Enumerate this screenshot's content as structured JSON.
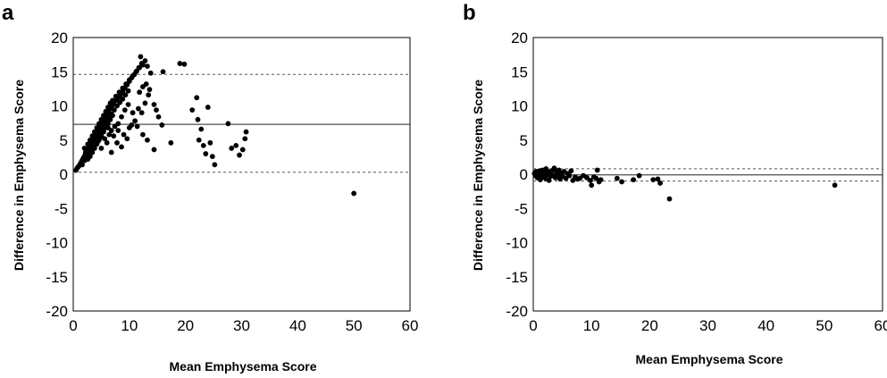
{
  "chart_data": [
    {
      "panel_label": "a",
      "type": "scatter",
      "xlabel": "Mean Emphysema Score",
      "ylabel": "Difference in Emphysema Score",
      "xlim": [
        0,
        60
      ],
      "ylim": [
        -20,
        20
      ],
      "x_ticks": [
        "0",
        "10",
        "20",
        "30",
        "40",
        "50",
        "60"
      ],
      "y_ticks": [
        "-20",
        "-15",
        "-10",
        "-5",
        "0",
        "5",
        "10",
        "15",
        "20"
      ],
      "grid": false,
      "reference_lines": [
        {
          "style": "solid",
          "y": 7.3
        },
        {
          "style": "dashed",
          "y": 14.6
        },
        {
          "style": "dashed",
          "y": 0.3
        }
      ],
      "points": [
        [
          0.5,
          0.6
        ],
        [
          0.7,
          0.9
        ],
        [
          0.9,
          1.1
        ],
        [
          1.1,
          1.3
        ],
        [
          1.3,
          1.6
        ],
        [
          1.5,
          1.9
        ],
        [
          1.7,
          2.2
        ],
        [
          1.9,
          2.5
        ],
        [
          2.1,
          2.8
        ],
        [
          2.3,
          3.1
        ],
        [
          2.5,
          3.4
        ],
        [
          2.7,
          3.7
        ],
        [
          2.9,
          4.0
        ],
        [
          3.1,
          4.3
        ],
        [
          3.3,
          4.7
        ],
        [
          3.5,
          5.0
        ],
        [
          3.7,
          5.3
        ],
        [
          3.9,
          5.6
        ],
        [
          4.1,
          5.9
        ],
        [
          4.3,
          6.2
        ],
        [
          4.5,
          6.5
        ],
        [
          4.7,
          6.8
        ],
        [
          4.9,
          7.1
        ],
        [
          5.1,
          7.4
        ],
        [
          5.3,
          7.7
        ],
        [
          5.5,
          8.0
        ],
        [
          5.7,
          8.3
        ],
        [
          5.9,
          8.6
        ],
        [
          6.1,
          8.9
        ],
        [
          6.3,
          9.2
        ],
        [
          6.6,
          9.6
        ],
        [
          6.9,
          10.0
        ],
        [
          7.2,
          10.4
        ],
        [
          7.6,
          10.8
        ],
        [
          8.0,
          11.2
        ],
        [
          8.4,
          11.6
        ],
        [
          8.8,
          12.1
        ],
        [
          9.2,
          12.6
        ],
        [
          9.6,
          13.1
        ],
        [
          10.0,
          13.6
        ],
        [
          10.4,
          14.1
        ],
        [
          10.9,
          14.6
        ],
        [
          11.3,
          15.1
        ],
        [
          11.7,
          15.6
        ],
        [
          12.2,
          16.2
        ],
        [
          1.6,
          1.4
        ],
        [
          2.0,
          2.0
        ],
        [
          2.4,
          2.6
        ],
        [
          2.8,
          3.0
        ],
        [
          3.2,
          3.6
        ],
        [
          3.6,
          4.2
        ],
        [
          4.0,
          4.8
        ],
        [
          4.4,
          5.4
        ],
        [
          4.8,
          6.0
        ],
        [
          5.2,
          6.6
        ],
        [
          5.6,
          7.2
        ],
        [
          6.0,
          7.6
        ],
        [
          6.4,
          8.2
        ],
        [
          6.8,
          8.8
        ],
        [
          7.3,
          9.4
        ],
        [
          7.8,
          10.0
        ],
        [
          8.3,
          10.5
        ],
        [
          8.8,
          11.0
        ],
        [
          9.3,
          11.6
        ],
        [
          9.8,
          12.2
        ],
        [
          2.2,
          3.2
        ],
        [
          2.6,
          2.2
        ],
        [
          3.0,
          2.6
        ],
        [
          3.4,
          3.2
        ],
        [
          3.8,
          3.8
        ],
        [
          4.2,
          4.4
        ],
        [
          4.6,
          5.0
        ],
        [
          5.0,
          5.6
        ],
        [
          5.4,
          6.2
        ],
        [
          5.8,
          6.8
        ],
        [
          6.2,
          7.4
        ],
        [
          6.6,
          8.0
        ],
        [
          7.0,
          8.6
        ],
        [
          2.0,
          3.8
        ],
        [
          2.6,
          4.4
        ],
        [
          3.0,
          5.0
        ],
        [
          3.4,
          5.6
        ],
        [
          3.8,
          6.2
        ],
        [
          4.2,
          6.8
        ],
        [
          4.6,
          7.4
        ],
        [
          5.0,
          8.0
        ],
        [
          5.4,
          8.6
        ],
        [
          5.8,
          9.2
        ],
        [
          6.2,
          9.8
        ],
        [
          6.6,
          10.4
        ],
        [
          7.0,
          10.8
        ],
        [
          7.6,
          11.4
        ],
        [
          8.2,
          12.0
        ],
        [
          8.8,
          12.6
        ],
        [
          9.4,
          13.2
        ],
        [
          10.0,
          13.8
        ],
        [
          10.6,
          14.4
        ],
        [
          11.2,
          15.0
        ],
        [
          11.8,
          15.6
        ],
        [
          12.4,
          16.0
        ],
        [
          4.4,
          4.8
        ],
        [
          4.8,
          5.4
        ],
        [
          5.6,
          5.2
        ],
        [
          6.4,
          5.8
        ],
        [
          7.2,
          5.6
        ],
        [
          8.0,
          6.4
        ],
        [
          9.0,
          5.8
        ],
        [
          10.0,
          6.8
        ],
        [
          5.0,
          3.8
        ],
        [
          6.0,
          4.6
        ],
        [
          6.8,
          3.2
        ],
        [
          7.8,
          4.6
        ],
        [
          8.6,
          4.0
        ],
        [
          9.6,
          5.2
        ],
        [
          10.4,
          7.2
        ],
        [
          11.0,
          7.8
        ],
        [
          11.6,
          9.6
        ],
        [
          12.2,
          9.0
        ],
        [
          12.8,
          10.4
        ],
        [
          13.4,
          11.6
        ],
        [
          11.8,
          12.0
        ],
        [
          12.4,
          12.8
        ],
        [
          13.0,
          13.2
        ],
        [
          13.6,
          12.4
        ],
        [
          12.0,
          17.2
        ],
        [
          12.8,
          16.6
        ],
        [
          13.2,
          15.8
        ],
        [
          13.8,
          14.8
        ],
        [
          14.4,
          10.2
        ],
        [
          14.8,
          9.4
        ],
        [
          15.2,
          8.4
        ],
        [
          15.8,
          7.2
        ],
        [
          16.0,
          15.0
        ],
        [
          14.4,
          3.6
        ],
        [
          13.2,
          5.0
        ],
        [
          12.4,
          5.8
        ],
        [
          11.4,
          7.0
        ],
        [
          10.6,
          9.0
        ],
        [
          9.8,
          10.2
        ],
        [
          9.2,
          9.4
        ],
        [
          8.6,
          8.4
        ],
        [
          8.0,
          7.4
        ],
        [
          7.4,
          7.0
        ],
        [
          6.8,
          6.4
        ],
        [
          6.2,
          6.8
        ],
        [
          5.6,
          7.6
        ],
        [
          17.4,
          4.6
        ],
        [
          19.0,
          16.2
        ],
        [
          19.8,
          16.1
        ],
        [
          21.2,
          9.4
        ],
        [
          22.0,
          11.2
        ],
        [
          22.2,
          8.0
        ],
        [
          22.4,
          5.0
        ],
        [
          22.8,
          6.6
        ],
        [
          23.2,
          4.2
        ],
        [
          23.6,
          3.0
        ],
        [
          24.0,
          9.8
        ],
        [
          24.4,
          4.6
        ],
        [
          24.8,
          2.6
        ],
        [
          25.2,
          1.4
        ],
        [
          27.6,
          7.4
        ],
        [
          28.2,
          3.8
        ],
        [
          29.0,
          4.2
        ],
        [
          29.6,
          2.8
        ],
        [
          30.2,
          3.6
        ],
        [
          30.6,
          5.2
        ],
        [
          30.8,
          6.2
        ],
        [
          50.0,
          -2.8
        ]
      ]
    },
    {
      "panel_label": "b",
      "type": "scatter",
      "xlabel": "Mean Emphysema Score",
      "ylabel": "Difference in Emphysema Score",
      "xlim": [
        0,
        60
      ],
      "ylim": [
        -20,
        20
      ],
      "x_ticks": [
        "0",
        "10",
        "20",
        "30",
        "40",
        "50",
        "60"
      ],
      "y_ticks": [
        "-20",
        "-15",
        "-10",
        "-5",
        "0",
        "5",
        "10",
        "15",
        "20"
      ],
      "grid": false,
      "reference_lines": [
        {
          "style": "solid",
          "y": -0.1
        },
        {
          "style": "dashed",
          "y": 0.8
        },
        {
          "style": "dashed",
          "y": -1.0
        }
      ],
      "points": [
        [
          0.2,
          0.1
        ],
        [
          0.4,
          -0.2
        ],
        [
          0.5,
          0.4
        ],
        [
          0.7,
          -0.5
        ],
        [
          0.8,
          0.2
        ],
        [
          1.0,
          -0.3
        ],
        [
          1.1,
          0.5
        ],
        [
          1.2,
          -0.8
        ],
        [
          1.4,
          0.1
        ],
        [
          1.5,
          -0.4
        ],
        [
          1.6,
          0.6
        ],
        [
          1.8,
          -0.2
        ],
        [
          1.9,
          0.3
        ],
        [
          2.1,
          -0.6
        ],
        [
          2.2,
          0.8
        ],
        [
          2.4,
          -0.1
        ],
        [
          2.5,
          0.4
        ],
        [
          2.7,
          -0.9
        ],
        [
          2.8,
          0.2
        ],
        [
          3.0,
          -0.3
        ],
        [
          3.2,
          0.5
        ],
        [
          3.4,
          -0.2
        ],
        [
          3.6,
          0.9
        ],
        [
          3.8,
          -0.5
        ],
        [
          4.0,
          0.3
        ],
        [
          4.2,
          -0.1
        ],
        [
          4.4,
          0.6
        ],
        [
          4.6,
          -0.7
        ],
        [
          4.8,
          0.2
        ],
        [
          5.0,
          -0.3
        ],
        [
          5.3,
          0.4
        ],
        [
          5.6,
          -0.6
        ],
        [
          5.9,
          0.1
        ],
        [
          6.2,
          -0.2
        ],
        [
          6.5,
          0.5
        ],
        [
          6.8,
          -0.9
        ],
        [
          7.2,
          -0.4
        ],
        [
          7.6,
          -0.7
        ],
        [
          8.0,
          -0.6
        ],
        [
          8.6,
          -0.2
        ],
        [
          9.2,
          -0.5
        ],
        [
          9.8,
          -0.9
        ],
        [
          10.0,
          -1.6
        ],
        [
          10.4,
          -0.4
        ],
        [
          10.8,
          -0.6
        ],
        [
          11.0,
          0.6
        ],
        [
          11.3,
          -1.1
        ],
        [
          11.6,
          -0.8
        ],
        [
          14.4,
          -0.6
        ],
        [
          15.2,
          -1.1
        ],
        [
          17.2,
          -0.8
        ],
        [
          18.2,
          -0.2
        ],
        [
          20.6,
          -0.8
        ],
        [
          21.4,
          -0.7
        ],
        [
          21.8,
          -1.3
        ],
        [
          23.4,
          -3.6
        ],
        [
          51.8,
          -1.6
        ]
      ]
    }
  ]
}
